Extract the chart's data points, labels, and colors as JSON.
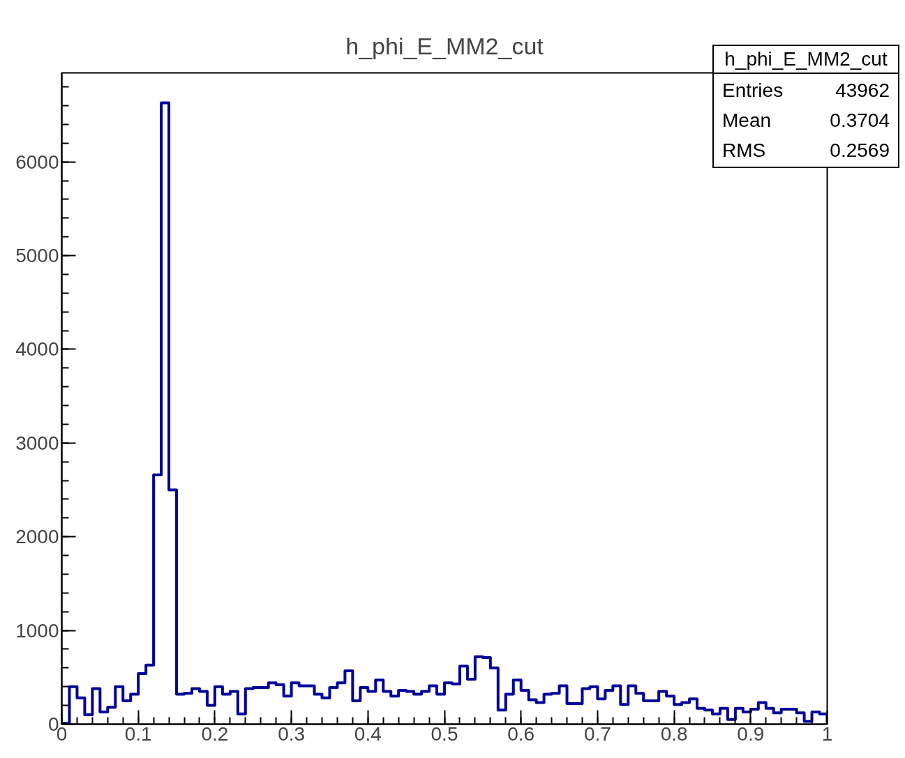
{
  "chart_data": {
    "type": "histogram",
    "title": "h_phi_E_MM2_cut",
    "bins": [
      0,
      0.01,
      0.02,
      0.03,
      0.04,
      0.05,
      0.06,
      0.07,
      0.08,
      0.09,
      0.1,
      0.11,
      0.12,
      0.13,
      0.14,
      0.15,
      0.16,
      0.17,
      0.18,
      0.19,
      0.2,
      0.21,
      0.22,
      0.23,
      0.24,
      0.25,
      0.26,
      0.27,
      0.28,
      0.29,
      0.3,
      0.31,
      0.32,
      0.33,
      0.34,
      0.35,
      0.36,
      0.37,
      0.38,
      0.39,
      0.4,
      0.41,
      0.42,
      0.43,
      0.44,
      0.45,
      0.46,
      0.47,
      0.48,
      0.49,
      0.5,
      0.51,
      0.52,
      0.53,
      0.54,
      0.55,
      0.56,
      0.57,
      0.58,
      0.59,
      0.6,
      0.61,
      0.62,
      0.63,
      0.64,
      0.65,
      0.66,
      0.67,
      0.68,
      0.69,
      0.7,
      0.71,
      0.72,
      0.73,
      0.74,
      0.75,
      0.76,
      0.77,
      0.78,
      0.79,
      0.8,
      0.81,
      0.82,
      0.83,
      0.84,
      0.85,
      0.86,
      0.87,
      0.88,
      0.89,
      0.9,
      0.91,
      0.92,
      0.93,
      0.94,
      0.95,
      0.96,
      0.97,
      0.98,
      0.99,
      1
    ],
    "values": [
      10,
      400,
      280,
      100,
      380,
      130,
      180,
      400,
      250,
      320,
      540,
      630,
      2660,
      6630,
      2500,
      320,
      330,
      380,
      350,
      200,
      400,
      320,
      350,
      110,
      380,
      390,
      390,
      440,
      420,
      300,
      440,
      410,
      410,
      320,
      280,
      390,
      440,
      570,
      250,
      390,
      350,
      470,
      350,
      300,
      360,
      350,
      320,
      350,
      410,
      320,
      440,
      430,
      620,
      480,
      720,
      710,
      600,
      150,
      320,
      470,
      360,
      260,
      230,
      320,
      330,
      410,
      220,
      220,
      380,
      400,
      270,
      360,
      410,
      210,
      410,
      330,
      250,
      250,
      350,
      300,
      210,
      230,
      270,
      170,
      150,
      110,
      170,
      50,
      170,
      130,
      160,
      230,
      170,
      120,
      160,
      160,
      120,
      30,
      130,
      110
    ],
    "color": "#000099",
    "xlim": [
      0,
      1
    ],
    "ylim": [
      0,
      6950
    ],
    "xticks": [
      0,
      0.1,
      0.2,
      0.3,
      0.4,
      0.5,
      0.6,
      0.7,
      0.8,
      0.9,
      1
    ],
    "yticks": [
      0,
      1000,
      2000,
      3000,
      4000,
      5000,
      6000
    ],
    "annotations": [
      "h_phi_E_MM2_cut",
      "Entries",
      "43962",
      "Mean",
      "0.3704",
      "RMS",
      "0.2569"
    ]
  }
}
